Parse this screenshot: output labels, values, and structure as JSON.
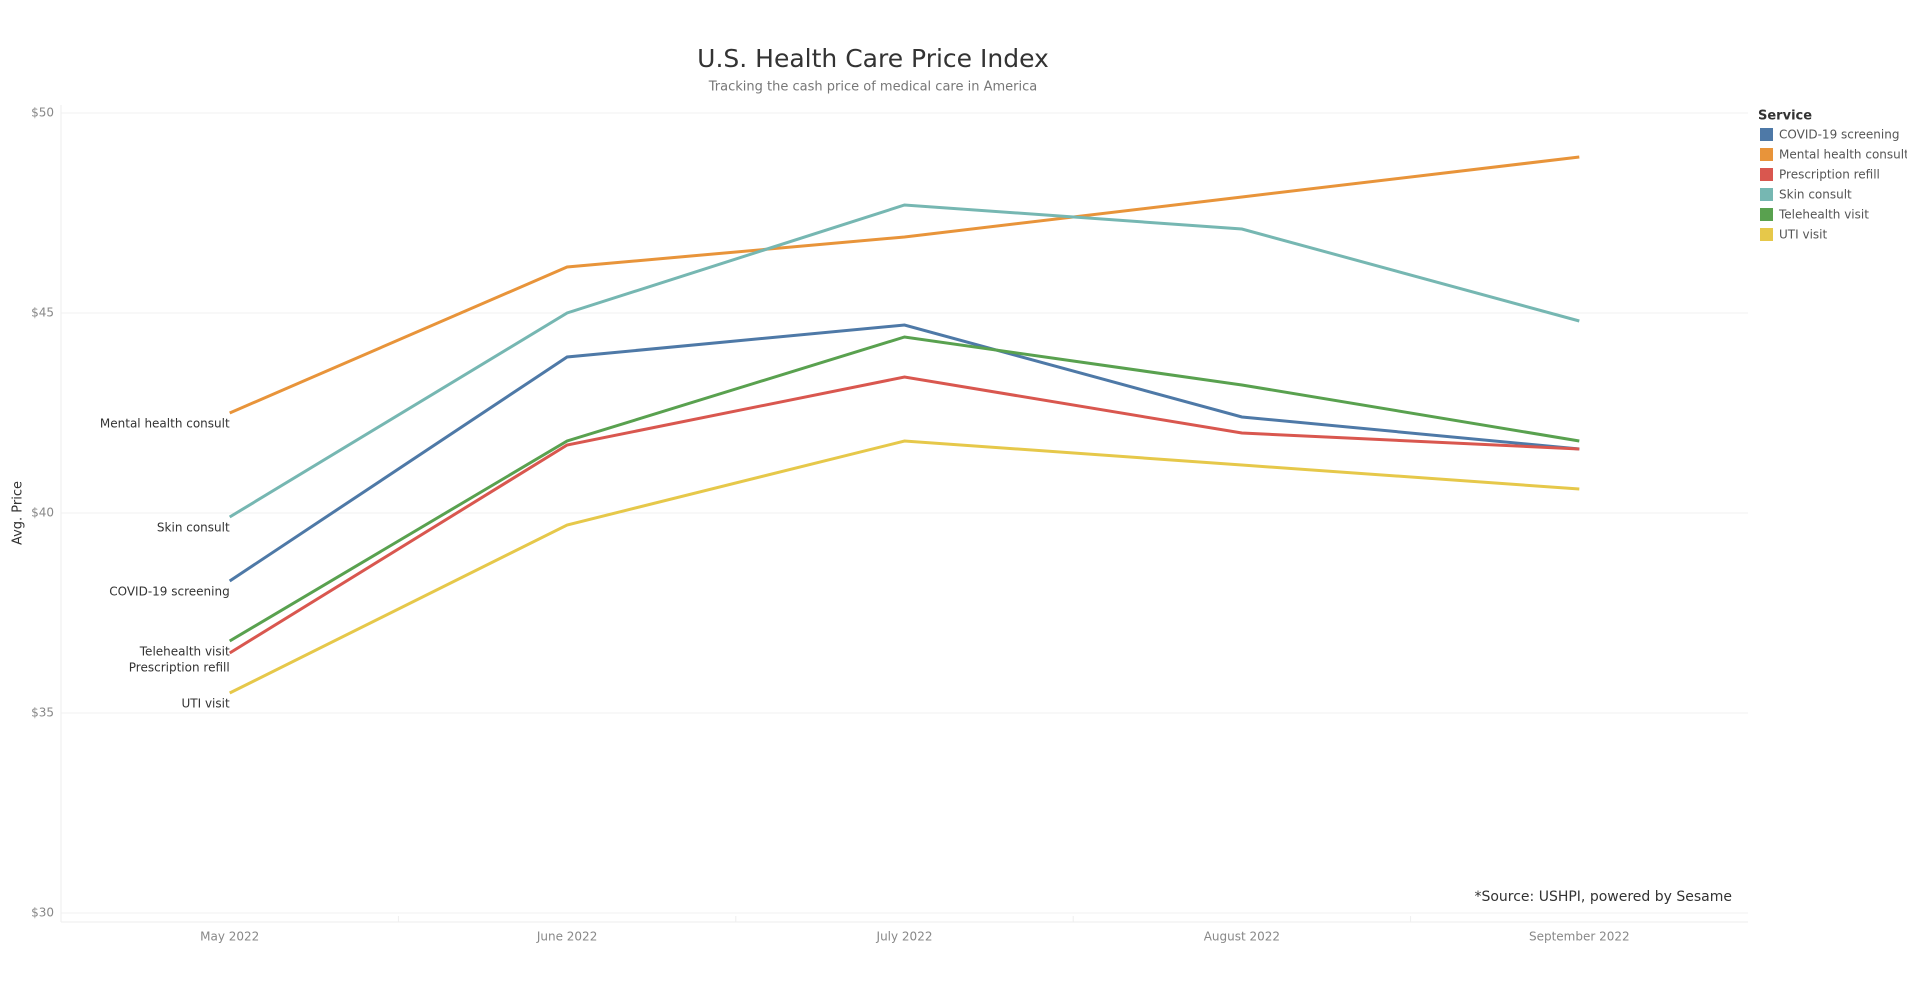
{
  "chart_data": {
    "type": "line",
    "title": "U.S. Health Care Price Index",
    "subtitle": "Tracking the cash price of medical care in America",
    "y_label": "Avg. Price",
    "legend_title": "Service",
    "legend_position": "right",
    "annotation": "*Source: USHPI, powered by Sesame",
    "grid": true,
    "categories": [
      "May 2022",
      "June 2022",
      "July 2022",
      "August 2022",
      "September 2022"
    ],
    "ylim": [
      30,
      50
    ],
    "yticks": [
      {
        "value": 30,
        "label": "$30"
      },
      {
        "value": 35,
        "label": "$35"
      },
      {
        "value": 40,
        "label": "$40"
      },
      {
        "value": 45,
        "label": "$45"
      },
      {
        "value": 50,
        "label": "$50"
      }
    ],
    "series": [
      {
        "name": "COVID-19 screening",
        "color": "#4e79a7",
        "values": [
          38.3,
          43.9,
          44.7,
          42.4,
          41.6
        ]
      },
      {
        "name": "Mental health consult",
        "color": "#e8943a",
        "values": [
          42.5,
          46.15,
          46.9,
          47.9,
          48.9
        ]
      },
      {
        "name": "Prescription refill",
        "color": "#d9574f",
        "values": [
          36.5,
          41.7,
          43.4,
          42.0,
          41.6
        ]
      },
      {
        "name": "Skin consult",
        "color": "#76b7b2",
        "values": [
          39.9,
          45.0,
          47.7,
          47.1,
          44.8
        ]
      },
      {
        "name": "Telehealth visit",
        "color": "#59a14f",
        "values": [
          36.8,
          41.8,
          44.4,
          43.2,
          41.8
        ]
      },
      {
        "name": "UTI visit",
        "color": "#e6c84a",
        "values": [
          35.5,
          39.7,
          41.8,
          41.2,
          40.6
        ]
      }
    ]
  }
}
